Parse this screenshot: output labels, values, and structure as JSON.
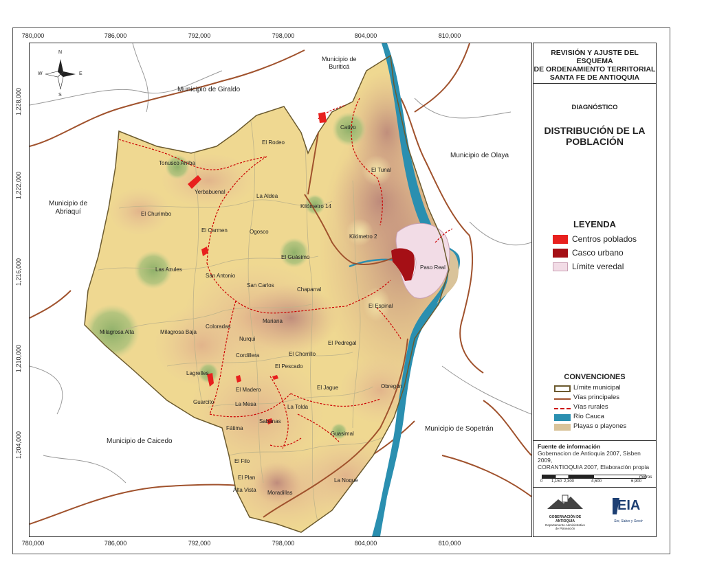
{
  "panel": {
    "title_lines": [
      "REVISIÓN Y AJUSTE DEL ESQUEMA",
      "DE ORDENAMIENTO TERRITORIAL",
      "SANTA FE DE ANTIOQUIA"
    ],
    "subtitle": "DIAGNÓSTICO",
    "main_title_lines": [
      "DISTRIBUCIÓN DE LA",
      "POBLACIÓN"
    ],
    "legend_title": "LEYENDA",
    "legend": [
      {
        "label": "Centros poblados",
        "color": "#e8201e"
      },
      {
        "label": "Casco urbano",
        "color": "#a50f15"
      },
      {
        "label": "Límite veredal",
        "color": "#f2dce6"
      }
    ],
    "conventions_title": "CONVENCIONES",
    "conventions": [
      {
        "label": "Límite municipal",
        "kind": "box",
        "color": "#6b5a2e"
      },
      {
        "label": "Vías principales",
        "kind": "line",
        "color": "#a0522d"
      },
      {
        "label": "Vías rurales",
        "kind": "dash",
        "color": "#cc0000"
      },
      {
        "label": "Río Cauca",
        "kind": "fill",
        "color": "#2a8fb0"
      },
      {
        "label": "Playas o playones",
        "kind": "fill",
        "color": "#d9c39a"
      }
    ],
    "source_title": "Fuente de información",
    "source_lines": [
      "Gobernacion de Antioquia 2007, Sisben 2009,",
      "CORANTIOQUIA 2007, Elaboración propia"
    ],
    "scale_labels": [
      "0",
      "1,150",
      "2,300",
      "4,600",
      "6,900"
    ],
    "scale_unit": "metros",
    "logo_gob_lines": [
      "GOBERNACIÓN DE ANTIOQUIA",
      "Departamento Administrativo",
      "de Planeación"
    ],
    "logo_eia": "EIA",
    "logo_eia_tagline": "Ser, Saber y Servir"
  },
  "map": {
    "x_ticks": [
      "780,000",
      "786,000",
      "792,000",
      "798,000",
      "804,000",
      "810,000"
    ],
    "y_ticks": [
      "1,228,000",
      "1,222,000",
      "1,216,000",
      "1,210,000",
      "1,204,000"
    ],
    "north": {
      "n": "N",
      "s": "S",
      "e": "E",
      "w": "W"
    },
    "municipalities": [
      {
        "id": "giraldo",
        "lines": [
          "Municipio de Giraldo"
        ]
      },
      {
        "id": "buritica",
        "lines": [
          "Municipio de",
          "Buriticá"
        ]
      },
      {
        "id": "olaya",
        "lines": [
          "Municipio de Olaya"
        ]
      },
      {
        "id": "abriaqui",
        "lines": [
          "Municipio de",
          "Abriaquí"
        ]
      },
      {
        "id": "caicedo",
        "lines": [
          "Municipio de Caicedo"
        ]
      },
      {
        "id": "sopetran",
        "lines": [
          "Municipio de Sopetrán"
        ]
      }
    ],
    "places": [
      "Tonusco Arriba",
      "Yerbabuenal",
      "El Rodeo",
      "La Aldea",
      "El Churimbo",
      "El Carmen",
      "Ogosco",
      "Kilómetro 14",
      "El Tunal",
      "Kilómetro 2",
      "El Guásimo",
      "Las Azules",
      "San Antonio",
      "San Carlos",
      "Chaparral",
      "El Espinal",
      "Paso Real",
      "Mariana",
      "Coloradas",
      "Milagrosa Alta",
      "Milagrosa Baja",
      "Nurqui",
      "Cordillera",
      "El Pedregal",
      "El Chorrillo",
      "El Pescado",
      "Lagrelles",
      "El Madero",
      "El Jague",
      "Obregón",
      "Guarcito",
      "La Mesa",
      "La Tolda",
      "Fátima",
      "Sabanas",
      "Guasimal",
      "El Filo",
      "El Plan",
      "Alta Vista",
      "Moradillas",
      "La Noque",
      "Cativo"
    ]
  }
}
